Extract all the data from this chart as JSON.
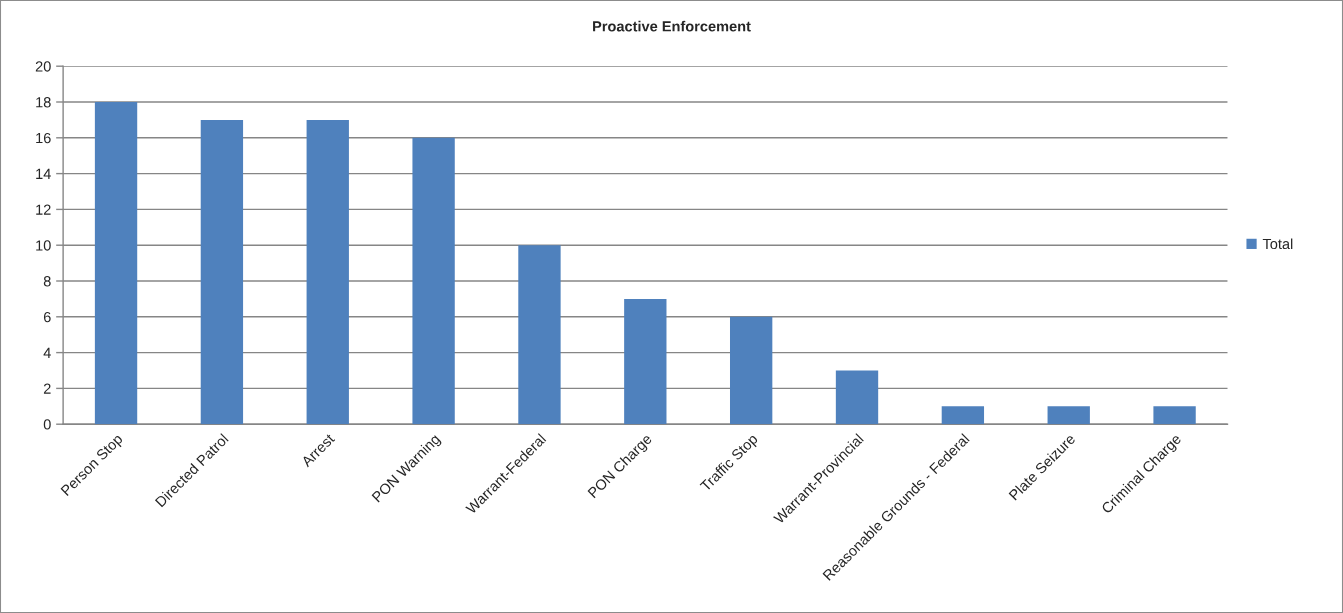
{
  "chart_data": {
    "type": "bar",
    "title": "Proactive Enforcement",
    "categories": [
      "Person Stop",
      "Directed Patrol",
      "Arrest",
      "PON Warning",
      "Warrant-Federal",
      "PON Charge",
      "Traffic Stop",
      "Warrant-Provincial",
      "Reasonable Grounds - Federal",
      "Plate Seizure",
      "Criminal Charge"
    ],
    "series": [
      {
        "name": "Total",
        "color": "#4f81bd",
        "values": [
          18,
          17,
          17,
          16,
          10,
          7,
          6,
          3,
          1,
          1,
          1
        ]
      }
    ],
    "ylim": [
      0,
      20
    ],
    "yticks": [
      0,
      2,
      4,
      6,
      8,
      10,
      12,
      14,
      16,
      18,
      20
    ],
    "grid": "y",
    "legend": "right"
  }
}
